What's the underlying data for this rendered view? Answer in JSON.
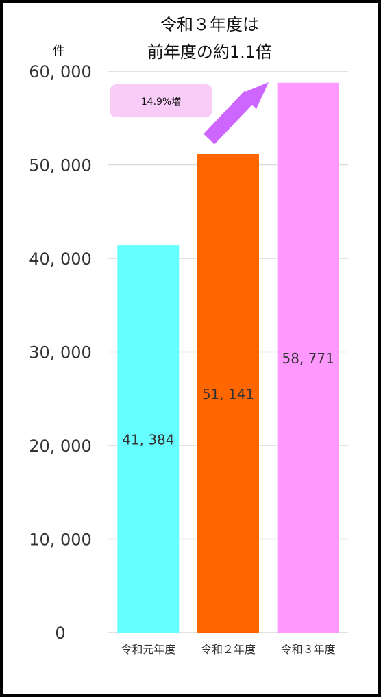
{
  "chart_data": {
    "type": "bar",
    "title_lines": [
      "令和３年度は",
      "前年度の約1.1倍"
    ],
    "unit_label": "件",
    "categories": [
      "令和元年度",
      "令和２年度",
      "令和３年度"
    ],
    "values": [
      41384,
      51141,
      58771
    ],
    "value_labels": [
      "41, 384",
      "51, 141",
      "58, 771"
    ],
    "ylim": [
      0,
      60000
    ],
    "yticks": [
      0,
      10000,
      20000,
      30000,
      40000,
      50000,
      60000
    ],
    "ytick_labels": [
      "0",
      "10, 000",
      "20, 000",
      "30, 000",
      "40, 000",
      "50, 000",
      "60, 000"
    ],
    "bar_colors": [
      "#66ffff",
      "#ff6600",
      "#ff99ff"
    ],
    "grid": true,
    "annotation": {
      "text": "14.9%増",
      "badge_color": "#f9ccf7",
      "arrow_color": "#cc66ff"
    }
  }
}
